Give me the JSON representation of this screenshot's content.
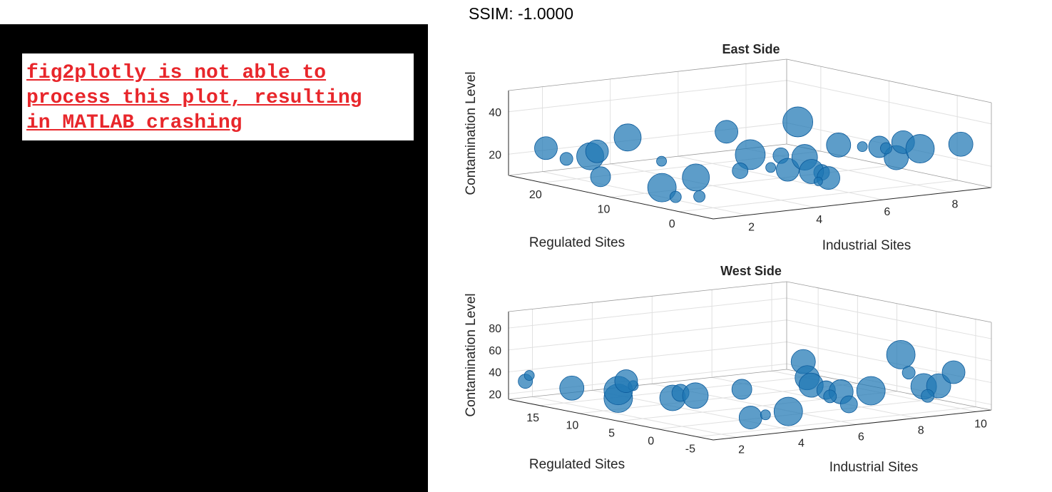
{
  "ssim_label": "SSIM: -1.0000",
  "error_message": "fig2plotly is not able to\nprocess this plot, resulting\nin MATLAB crashing",
  "colors": {
    "error_text": "#e8262b",
    "marker_fill": "#1f77b4",
    "marker_edge": "#0b5a9b",
    "grid": "#e0e0e0",
    "axis": "#262626"
  },
  "chart_data": [
    {
      "type": "scatter",
      "subtype": "bubble3",
      "title": "East Side",
      "xlabel": "Industrial Sites",
      "ylabel": "Regulated Sites",
      "zlabel": "Contamination Level",
      "xticks": [
        "2",
        "4",
        "6",
        "8"
      ],
      "yticks": [
        "0",
        "10",
        "20"
      ],
      "zticks": [
        "20",
        "40"
      ],
      "xlim": [
        1,
        9.2
      ],
      "ylim": [
        -5,
        25
      ],
      "zlim": [
        10,
        50
      ],
      "grid": true,
      "points": [
        {
          "x": 1.5,
          "y": 22,
          "z": 24,
          "s": 16
        },
        {
          "x": 1.5,
          "y": 19,
          "z": 21,
          "s": 9
        },
        {
          "x": 2,
          "y": 18,
          "z": 22,
          "s": 19
        },
        {
          "x": 2,
          "y": 17,
          "z": 25,
          "s": 16
        },
        {
          "x": 1.5,
          "y": 14,
          "z": 16,
          "s": 14
        },
        {
          "x": 2.5,
          "y": 15,
          "z": 32,
          "s": 19
        },
        {
          "x": 1.5,
          "y": 5,
          "z": 17,
          "s": 20
        },
        {
          "x": 1.5,
          "y": 3,
          "z": 14,
          "s": 8
        },
        {
          "x": 2.5,
          "y": 5,
          "z": 20,
          "s": 19
        },
        {
          "x": 2,
          "y": 2,
          "z": 14,
          "s": 8
        },
        {
          "x": 3,
          "y": 3,
          "z": 42,
          "s": 16
        },
        {
          "x": 3.5,
          "y": 2,
          "z": 31,
          "s": 21
        },
        {
          "x": 3,
          "y": 1,
          "z": 25,
          "s": 11
        },
        {
          "x": 3.5,
          "y": -1,
          "z": 27,
          "s": 7
        },
        {
          "x": 4,
          "y": 0,
          "z": 31,
          "s": 11
        },
        {
          "x": 4,
          "y": -1,
          "z": 25,
          "s": 16
        },
        {
          "x": 4.5,
          "y": 0,
          "z": 46,
          "s": 21
        },
        {
          "x": 4.5,
          "y": -1,
          "z": 30,
          "s": 18
        },
        {
          "x": 4.5,
          "y": -2,
          "z": 24,
          "s": 17
        },
        {
          "x": 4.5,
          "y": -3,
          "z": 20,
          "s": 6
        },
        {
          "x": 5,
          "y": -1,
          "z": 22,
          "s": 11
        },
        {
          "x": 5,
          "y": -2,
          "z": 20,
          "s": 16
        },
        {
          "x": 5.5,
          "y": -1,
          "z": 34,
          "s": 17
        },
        {
          "x": 6,
          "y": -2,
          "z": 33,
          "s": 7
        },
        {
          "x": 6.5,
          "y": -2,
          "z": 32,
          "s": 15
        },
        {
          "x": 6.5,
          "y": -3,
          "z": 32,
          "s": 8
        },
        {
          "x": 7,
          "y": -2,
          "z": 26,
          "s": 17
        },
        {
          "x": 7,
          "y": -3,
          "z": 34,
          "s": 16
        },
        {
          "x": 7.5,
          "y": -3,
          "z": 30,
          "s": 20
        },
        {
          "x": 8.5,
          "y": -4,
          "z": 31,
          "s": 17
        },
        {
          "x": 3.5,
          "y": 15,
          "z": 19,
          "s": 7
        }
      ]
    },
    {
      "type": "scatter",
      "subtype": "bubble3",
      "title": "West Side",
      "xlabel": "Industrial Sites",
      "ylabel": "Regulated Sites",
      "zlabel": "Contamination Level",
      "xticks": [
        "2",
        "4",
        "6",
        "8",
        "10"
      ],
      "yticks": [
        "-5",
        "0",
        "5",
        "10",
        "15"
      ],
      "zticks": [
        "20",
        "40",
        "60",
        "80"
      ],
      "xlim": [
        1.2,
        10.5
      ],
      "ylim": [
        -7,
        19
      ],
      "zlim": [
        15,
        95
      ],
      "grid": true,
      "points": [
        {
          "x": 1.5,
          "y": 18,
          "z": 32,
          "s": 10
        },
        {
          "x": 1.5,
          "y": 17.5,
          "z": 38,
          "s": 7
        },
        {
          "x": 2,
          "y": 14,
          "z": 30,
          "s": 17
        },
        {
          "x": 2.5,
          "y": 10,
          "z": 25,
          "s": 20
        },
        {
          "x": 2.5,
          "y": 10,
          "z": 32,
          "s": 20
        },
        {
          "x": 3,
          "y": 10,
          "z": 35,
          "s": 7
        },
        {
          "x": 2.5,
          "y": 9,
          "z": 42,
          "s": 16
        },
        {
          "x": 3,
          "y": 5,
          "z": 31,
          "s": 18
        },
        {
          "x": 3,
          "y": 4,
          "z": 37,
          "s": 12
        },
        {
          "x": 3.5,
          "y": 4,
          "z": 33,
          "s": 18
        },
        {
          "x": 4,
          "y": 0,
          "z": 43,
          "s": 14
        },
        {
          "x": 3.5,
          "y": -3,
          "z": 23,
          "s": 16
        },
        {
          "x": 4,
          "y": -3,
          "z": 24,
          "s": 7
        },
        {
          "x": 4.5,
          "y": -4,
          "z": 27,
          "s": 20
        },
        {
          "x": 5,
          "y": -4,
          "z": 71,
          "s": 17
        },
        {
          "x": 5,
          "y": -4.5,
          "z": 57,
          "s": 17
        },
        {
          "x": 5,
          "y": -5,
          "z": 51,
          "s": 17
        },
        {
          "x": 5.5,
          "y": -5,
          "z": 45,
          "s": 13
        },
        {
          "x": 5.5,
          "y": -5.5,
          "z": 40,
          "s": 9
        },
        {
          "x": 6,
          "y": -5,
          "z": 42,
          "s": 17
        },
        {
          "x": 6,
          "y": -6,
          "z": 32,
          "s": 12
        },
        {
          "x": 7,
          "y": -5,
          "z": 40,
          "s": 20
        },
        {
          "x": 8,
          "y": -5,
          "z": 70,
          "s": 20
        },
        {
          "x": 8,
          "y": -6,
          "z": 55,
          "s": 9
        },
        {
          "x": 8.5,
          "y": -6,
          "z": 41,
          "s": 18
        },
        {
          "x": 9,
          "y": -6,
          "z": 40,
          "s": 17
        },
        {
          "x": 8.5,
          "y": -6.5,
          "z": 33,
          "s": 9
        },
        {
          "x": 9.5,
          "y": -6,
          "z": 51,
          "s": 16
        }
      ]
    }
  ]
}
